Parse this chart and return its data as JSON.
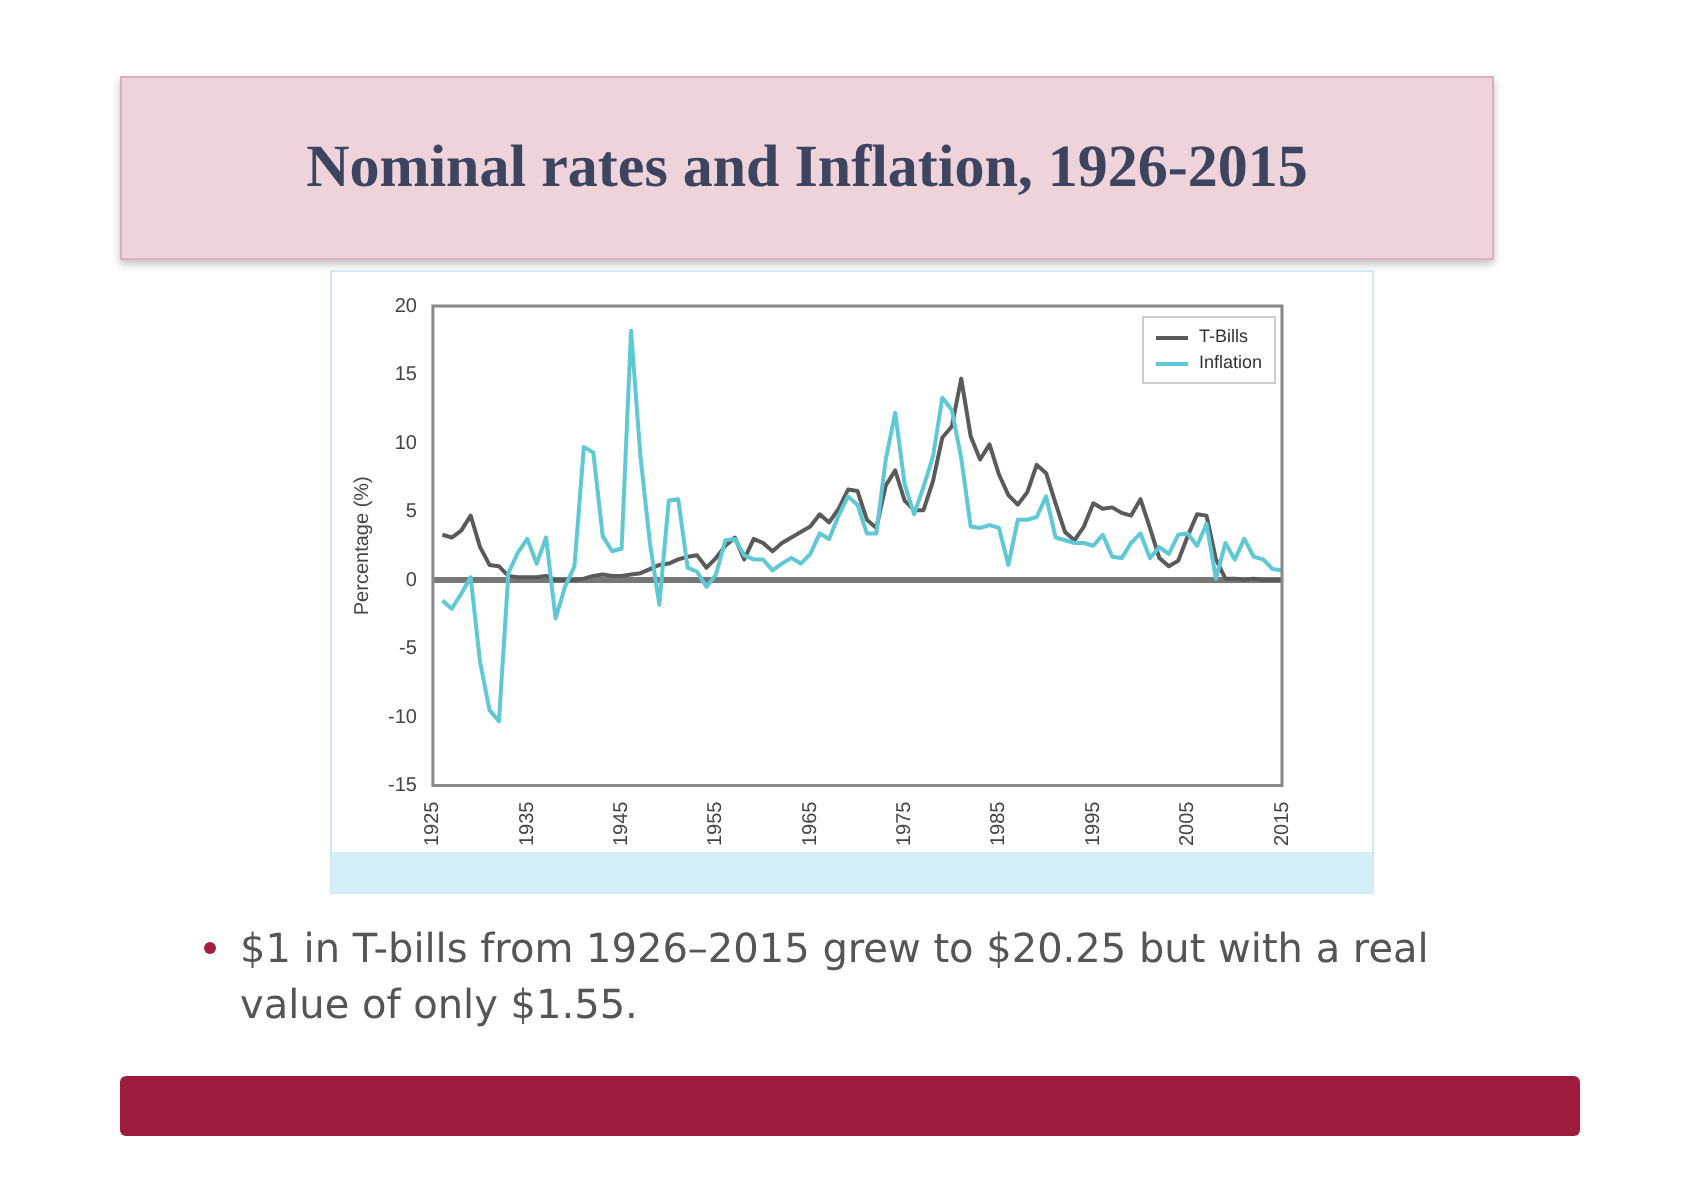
{
  "chart_data": {
    "type": "line",
    "title": "Nominal rates and Inflation, 1926-2015",
    "ylabel": "Percentage (%)",
    "annotations": [
      "$1 in T-bills from 1926–2015 grew to $20.25 but with a real value of only $1.55."
    ],
    "x": [
      1926,
      1927,
      1928,
      1929,
      1930,
      1931,
      1932,
      1933,
      1934,
      1935,
      1936,
      1937,
      1938,
      1939,
      1940,
      1941,
      1942,
      1943,
      1944,
      1945,
      1946,
      1947,
      1948,
      1949,
      1950,
      1951,
      1952,
      1953,
      1954,
      1955,
      1956,
      1957,
      1958,
      1959,
      1960,
      1961,
      1962,
      1963,
      1964,
      1965,
      1966,
      1967,
      1968,
      1969,
      1970,
      1971,
      1972,
      1973,
      1974,
      1975,
      1976,
      1977,
      1978,
      1979,
      1980,
      1981,
      1982,
      1983,
      1984,
      1985,
      1986,
      1987,
      1988,
      1989,
      1990,
      1991,
      1992,
      1993,
      1994,
      1995,
      1996,
      1997,
      1998,
      1999,
      2000,
      2001,
      2002,
      2003,
      2004,
      2005,
      2006,
      2007,
      2008,
      2009,
      2010,
      2011,
      2012,
      2013,
      2014,
      2015
    ],
    "series": [
      {
        "name": "T-Bills",
        "color": "#5a5a5a",
        "values": [
          3.3,
          3.1,
          3.6,
          4.7,
          2.4,
          1.1,
          1.0,
          0.3,
          0.2,
          0.2,
          0.2,
          0.3,
          0.0,
          0.0,
          0.0,
          0.1,
          0.3,
          0.4,
          0.3,
          0.3,
          0.4,
          0.5,
          0.8,
          1.1,
          1.2,
          1.5,
          1.7,
          1.8,
          0.9,
          1.6,
          2.5,
          3.1,
          1.5,
          3.0,
          2.7,
          2.1,
          2.7,
          3.1,
          3.5,
          3.9,
          4.8,
          4.2,
          5.2,
          6.6,
          6.5,
          4.4,
          3.8,
          6.9,
          8.0,
          5.8,
          5.1,
          5.1,
          7.2,
          10.4,
          11.2,
          14.7,
          10.5,
          8.8,
          9.9,
          7.7,
          6.2,
          5.5,
          6.4,
          8.4,
          7.8,
          5.6,
          3.5,
          2.9,
          3.9,
          5.6,
          5.2,
          5.3,
          4.9,
          4.7,
          5.9,
          3.8,
          1.6,
          1.0,
          1.4,
          3.2,
          4.8,
          4.7,
          1.5,
          0.1,
          0.1,
          0.0,
          0.1,
          0.0,
          0.0,
          0.0
        ]
      },
      {
        "name": "Inflation",
        "color": "#5ec8d4",
        "values": [
          -1.5,
          -2.1,
          -1.0,
          0.2,
          -6.0,
          -9.5,
          -10.3,
          0.5,
          2.0,
          3.0,
          1.2,
          3.1,
          -2.8,
          -0.5,
          1.0,
          9.7,
          9.3,
          3.2,
          2.1,
          2.3,
          18.2,
          9.0,
          2.7,
          -1.8,
          5.8,
          5.9,
          0.9,
          0.6,
          -0.5,
          0.4,
          2.9,
          3.0,
          1.8,
          1.5,
          1.5,
          0.7,
          1.2,
          1.6,
          1.2,
          1.9,
          3.4,
          3.0,
          4.7,
          6.1,
          5.5,
          3.4,
          3.4,
          8.8,
          12.2,
          7.0,
          4.8,
          6.8,
          9.0,
          13.3,
          12.4,
          8.9,
          3.9,
          3.8,
          4.0,
          3.8,
          1.1,
          4.4,
          4.4,
          4.6,
          6.1,
          3.1,
          2.9,
          2.7,
          2.7,
          2.5,
          3.3,
          1.7,
          1.6,
          2.7,
          3.4,
          1.6,
          2.4,
          1.9,
          3.3,
          3.4,
          2.5,
          4.1,
          0.1,
          2.7,
          1.5,
          3.0,
          1.7,
          1.5,
          0.8,
          0.7
        ]
      }
    ],
    "xlim": [
      1925,
      2015
    ],
    "xticks": [
      1925,
      1935,
      1945,
      1955,
      1965,
      1975,
      1985,
      1995,
      2005,
      2015
    ],
    "ylim": [
      -15,
      20
    ],
    "yticks": [
      -15,
      -10,
      -5,
      0,
      5,
      10,
      15,
      20
    ],
    "ref_lines": [
      {
        "axis": "y",
        "value": 0,
        "color": "#777777"
      }
    ],
    "legend": "top right",
    "marker": "none",
    "line_style": "solid",
    "grid": false
  }
}
